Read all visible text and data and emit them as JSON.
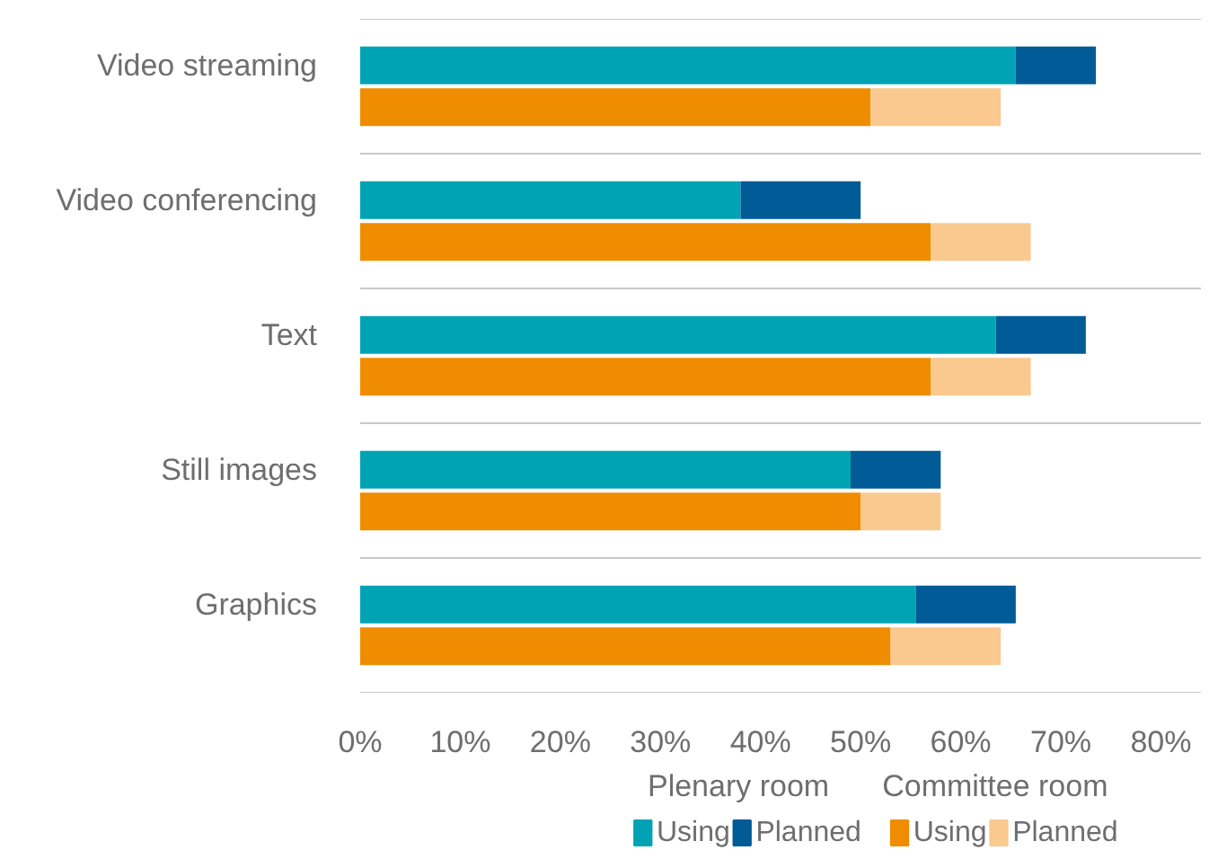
{
  "chart_data": {
    "type": "bar",
    "orientation": "horizontal",
    "stacked": true,
    "categories": [
      "Video streaming",
      null,
      "Video conferencing",
      null,
      "Text",
      null,
      "Still images",
      null,
      "Graphics",
      null
    ],
    "series": [
      {
        "name": "Using",
        "color": "#00a3b4",
        "values": [
          65.5,
          null,
          38,
          null,
          63.5,
          null,
          49,
          null,
          55.5,
          null
        ]
      },
      {
        "name": "Planned",
        "color": "#005b96",
        "values": [
          8,
          null,
          12,
          null,
          9,
          null,
          9,
          null,
          10,
          null
        ]
      },
      {
        "name": "Using",
        "color": "#f08c00",
        "values": [
          null,
          51,
          null,
          57,
          null,
          57,
          null,
          50,
          null,
          53
        ]
      },
      {
        "name": "Planned",
        "color": "#fac98f",
        "values": [
          null,
          13,
          null,
          10,
          null,
          10,
          null,
          8,
          null,
          11
        ]
      }
    ],
    "annotations": [
      "Plenary room",
      "Committee room"
    ],
    "xlim": [
      0,
      84
    ],
    "xticks": [
      {
        "value": 0,
        "label": "0%"
      },
      {
        "value": 10,
        "label": "10%"
      },
      {
        "value": 20,
        "label": "20%"
      },
      {
        "value": 30,
        "label": "30%"
      },
      {
        "value": 40,
        "label": "40%"
      },
      {
        "value": 50,
        "label": "50%"
      },
      {
        "value": 60,
        "label": "60%"
      },
      {
        "value": 70,
        "label": "70%"
      },
      {
        "value": 80,
        "label": "80%"
      }
    ],
    "grid": "y",
    "legend": "bottom"
  }
}
